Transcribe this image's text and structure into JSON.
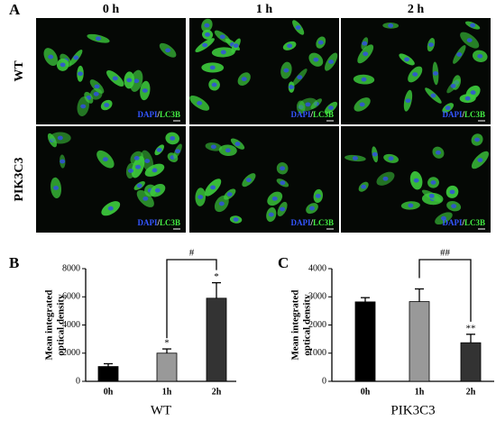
{
  "panel_labels": [
    "A",
    "B",
    "C"
  ],
  "micrograph": {
    "columns": [
      "0 h",
      "1 h",
      "2 h"
    ],
    "rows": [
      "WT",
      "PIK3C3"
    ],
    "stain_label": {
      "dapi": "DAPI",
      "separator": "/",
      "lc3b": "LC3B"
    }
  },
  "chart_data": [
    {
      "type": "bar",
      "xlabel": "WT",
      "ylabel": [
        "Mean integrated",
        "optical density"
      ],
      "categories": [
        "0h",
        "1h",
        "2h"
      ],
      "values": [
        1050,
        2000,
        5900
      ],
      "errors": [
        200,
        300,
        1100
      ],
      "colors": [
        "#000000",
        "#999999",
        "#333333"
      ],
      "ylim": [
        0,
        8000
      ],
      "yticks": [
        0,
        2000,
        4000,
        6000,
        8000
      ],
      "significance": [
        null,
        "*",
        "*"
      ],
      "bracket": {
        "from": "1h",
        "to": "2h",
        "label": "#"
      }
    },
    {
      "type": "bar",
      "xlabel": "PIK3C3",
      "ylabel": [
        "Mean integrated",
        "optical density"
      ],
      "categories": [
        "0h",
        "1h",
        "2h"
      ],
      "values": [
        2820,
        2830,
        1370
      ],
      "errors": [
        150,
        450,
        300
      ],
      "colors": [
        "#000000",
        "#999999",
        "#333333"
      ],
      "ylim": [
        0,
        4000
      ],
      "yticks": [
        0,
        1000,
        2000,
        3000,
        4000
      ],
      "significance": [
        null,
        null,
        "**"
      ],
      "bracket": {
        "from": "1h",
        "to": "2h",
        "label": "##"
      }
    }
  ]
}
